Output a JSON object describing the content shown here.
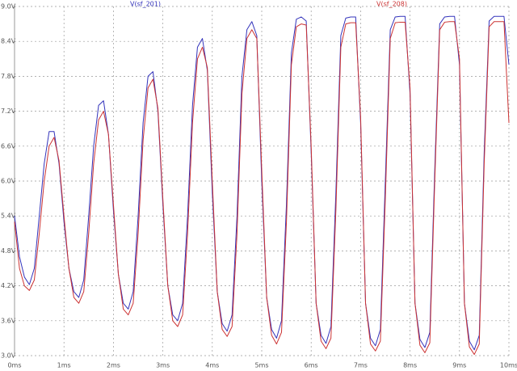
{
  "chart_data": {
    "type": "line",
    "x": [
      0,
      0.1,
      0.2,
      0.3,
      0.4,
      0.5,
      0.6,
      0.7,
      0.8,
      0.9,
      1,
      1.1,
      1.2,
      1.3,
      1.4,
      1.5,
      1.6,
      1.7,
      1.8,
      1.9,
      2,
      2.1,
      2.2,
      2.3,
      2.4,
      2.5,
      2.6,
      2.7,
      2.8,
      2.9,
      3,
      3.1,
      3.2,
      3.3,
      3.4,
      3.5,
      3.6,
      3.7,
      3.8,
      3.9,
      4,
      4.1,
      4.2,
      4.3,
      4.4,
      4.5,
      4.6,
      4.7,
      4.8,
      4.9,
      5,
      5.1,
      5.2,
      5.3,
      5.4,
      5.5,
      5.6,
      5.7,
      5.8,
      5.9,
      6,
      6.1,
      6.2,
      6.3,
      6.4,
      6.5,
      6.6,
      6.7,
      6.8,
      6.9,
      7,
      7.1,
      7.2,
      7.3,
      7.4,
      7.5,
      7.6,
      7.7,
      7.8,
      7.9,
      8,
      8.1,
      8.2,
      8.3,
      8.4,
      8.5,
      8.6,
      8.7,
      8.8,
      8.9,
      9,
      9.1,
      9.2,
      9.3,
      9.4,
      9.5,
      9.6,
      9.7,
      9.8,
      9.9,
      10
    ],
    "series": [
      {
        "name": "V(sf_201)",
        "color": "#3333bb",
        "values": [
          5.4,
          4.7,
          4.35,
          4.22,
          4.5,
          5.4,
          6.3,
          6.85,
          6.85,
          6.3,
          5.3,
          4.5,
          4.1,
          4.0,
          4.3,
          5.4,
          6.6,
          7.3,
          7.38,
          6.8,
          5.5,
          4.4,
          3.9,
          3.8,
          4.1,
          5.4,
          7.0,
          7.8,
          7.88,
          7.2,
          5.6,
          4.2,
          3.7,
          3.6,
          3.9,
          5.4,
          7.3,
          8.3,
          8.45,
          7.9,
          5.8,
          4.1,
          3.55,
          3.42,
          3.7,
          5.4,
          7.8,
          8.6,
          8.74,
          8.5,
          6.0,
          4.0,
          3.45,
          3.3,
          3.6,
          5.6,
          8.2,
          8.78,
          8.82,
          8.75,
          6.5,
          3.9,
          3.35,
          3.21,
          3.5,
          5.8,
          8.5,
          8.8,
          8.82,
          8.82,
          7.0,
          3.9,
          3.3,
          3.17,
          3.45,
          6.0,
          8.6,
          8.82,
          8.83,
          8.83,
          7.5,
          3.9,
          3.28,
          3.14,
          3.4,
          6.2,
          8.7,
          8.82,
          8.83,
          8.83,
          8.0,
          3.9,
          3.25,
          3.1,
          3.35,
          6.5,
          8.75,
          8.83,
          8.83,
          8.83,
          8.0
        ]
      },
      {
        "name": "V(sf_208)",
        "color": "#cc3333",
        "values": [
          5.3,
          4.5,
          4.2,
          4.12,
          4.3,
          5.1,
          6.0,
          6.6,
          6.75,
          6.35,
          5.4,
          4.5,
          4.0,
          3.9,
          4.1,
          5.1,
          6.3,
          7.05,
          7.2,
          6.8,
          5.6,
          4.4,
          3.8,
          3.7,
          3.9,
          5.1,
          6.7,
          7.6,
          7.75,
          7.25,
          5.7,
          4.2,
          3.6,
          3.5,
          3.7,
          5.1,
          7.0,
          8.1,
          8.3,
          7.95,
          6.0,
          4.1,
          3.45,
          3.33,
          3.5,
          5.1,
          7.5,
          8.45,
          8.6,
          8.45,
          6.2,
          4.0,
          3.35,
          3.2,
          3.4,
          5.3,
          8.0,
          8.65,
          8.7,
          8.68,
          6.6,
          3.9,
          3.25,
          3.12,
          3.3,
          5.5,
          8.3,
          8.7,
          8.72,
          8.72,
          7.1,
          3.9,
          3.2,
          3.08,
          3.25,
          5.7,
          8.45,
          8.72,
          8.73,
          8.73,
          7.6,
          3.9,
          3.18,
          3.05,
          3.22,
          6.0,
          8.6,
          8.73,
          8.74,
          8.74,
          8.1,
          3.9,
          3.15,
          3.02,
          3.2,
          6.3,
          8.65,
          8.74,
          8.74,
          8.74,
          7.0
        ]
      }
    ],
    "xlim": [
      0,
      10
    ],
    "xticks": [
      {
        "value": 0,
        "label": "0ms"
      },
      {
        "value": 1,
        "label": "1ms"
      },
      {
        "value": 2,
        "label": "2ms"
      },
      {
        "value": 3,
        "label": "3ms"
      },
      {
        "value": 4,
        "label": "4ms"
      },
      {
        "value": 5,
        "label": "5ms"
      },
      {
        "value": 6,
        "label": "6ms"
      },
      {
        "value": 7,
        "label": "7ms"
      },
      {
        "value": 8,
        "label": "8ms"
      },
      {
        "value": 9,
        "label": "9ms"
      },
      {
        "value": 10,
        "label": "10ms"
      }
    ],
    "ylim": [
      3.0,
      9.0
    ],
    "yticks": [
      {
        "value": 3.0,
        "label": "3.0V"
      },
      {
        "value": 3.6,
        "label": "3.6V"
      },
      {
        "value": 4.2,
        "label": "4.2V"
      },
      {
        "value": 4.8,
        "label": "4.8V"
      },
      {
        "value": 5.4,
        "label": "5.4V"
      },
      {
        "value": 6.0,
        "label": "6.0V"
      },
      {
        "value": 6.6,
        "label": "6.6V"
      },
      {
        "value": 7.2,
        "label": "7.2V"
      },
      {
        "value": 7.8,
        "label": "7.8V"
      },
      {
        "value": 8.4,
        "label": "8.4V"
      },
      {
        "value": 9.0,
        "label": "9.0V"
      }
    ],
    "grid": true
  }
}
